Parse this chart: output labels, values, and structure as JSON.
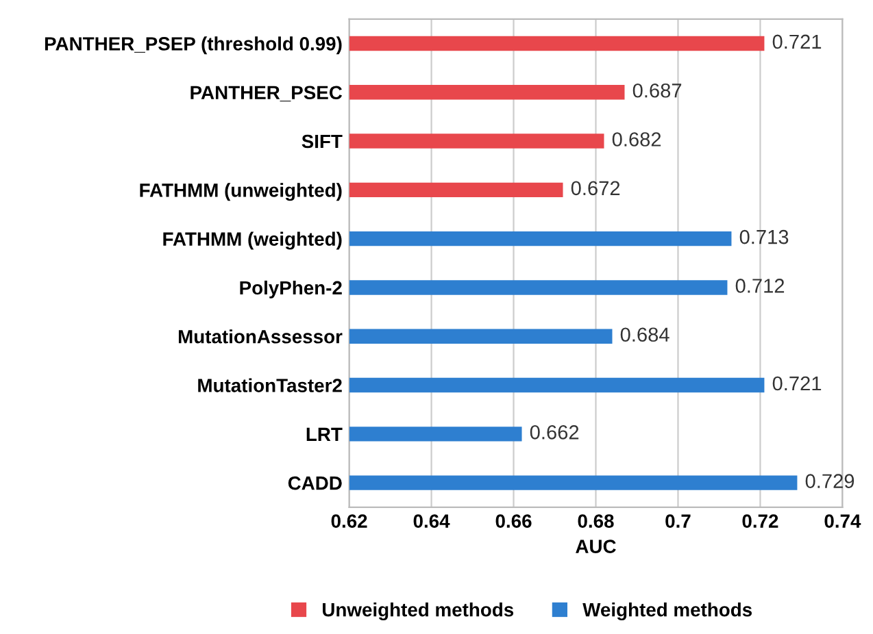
{
  "chart_data": {
    "type": "bar",
    "orientation": "horizontal",
    "xlabel": "AUC",
    "categories": [
      "PANTHER_PSEP (threshold 0.99)",
      "PANTHER_PSEC",
      "SIFT",
      "FATHMM (unweighted)",
      "FATHMM (weighted)",
      "PolyPhen-2",
      "MutationAssessor",
      "MutationTaster2",
      "LRT",
      "CADD"
    ],
    "series": [
      {
        "name": "Unweighted methods",
        "color": "#e8474c",
        "values": [
          0.721,
          0.687,
          0.682,
          0.672,
          null,
          null,
          null,
          null,
          null,
          null
        ]
      },
      {
        "name": "Weighted methods",
        "color": "#2e7fd0",
        "values": [
          null,
          null,
          null,
          null,
          0.713,
          0.712,
          0.684,
          0.721,
          0.662,
          0.729
        ]
      }
    ],
    "xlim": [
      0.62,
      0.74
    ],
    "xticks": [
      0.62,
      0.64,
      0.66,
      0.68,
      {
        "value": 0.7,
        "label": "0.7"
      },
      0.72,
      0.74
    ],
    "grid": "x",
    "legend": "bottom",
    "data_labels": true
  }
}
